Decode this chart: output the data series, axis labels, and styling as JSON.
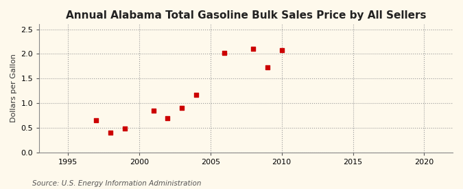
{
  "title": "Annual Alabama Total Gasoline Bulk Sales Price by All Sellers",
  "ylabel": "Dollars per Gallon",
  "source": "Source: U.S. Energy Information Administration",
  "background_color": "#fef9ec",
  "plot_bg_color": "#fef9ec",
  "xlim": [
    1993,
    2022
  ],
  "ylim": [
    0.0,
    2.6
  ],
  "xticks": [
    1995,
    2000,
    2005,
    2010,
    2015,
    2020
  ],
  "yticks": [
    0.0,
    0.5,
    1.0,
    1.5,
    2.0,
    2.5
  ],
  "years": [
    1997,
    1998,
    1999,
    2001,
    2002,
    2003,
    2004,
    2006,
    2008,
    2009,
    2010
  ],
  "values": [
    0.65,
    0.4,
    0.49,
    0.85,
    0.7,
    0.9,
    1.17,
    2.02,
    2.1,
    1.72,
    2.07
  ],
  "marker_color": "#cc0000",
  "marker": "s",
  "marker_size": 16,
  "grid_color": "#999999",
  "grid_linestyle": ":",
  "grid_alpha": 1.0,
  "grid_linewidth": 0.8,
  "title_fontsize": 11,
  "title_fontweight": "bold",
  "label_fontsize": 8,
  "tick_fontsize": 8,
  "source_fontsize": 7.5
}
